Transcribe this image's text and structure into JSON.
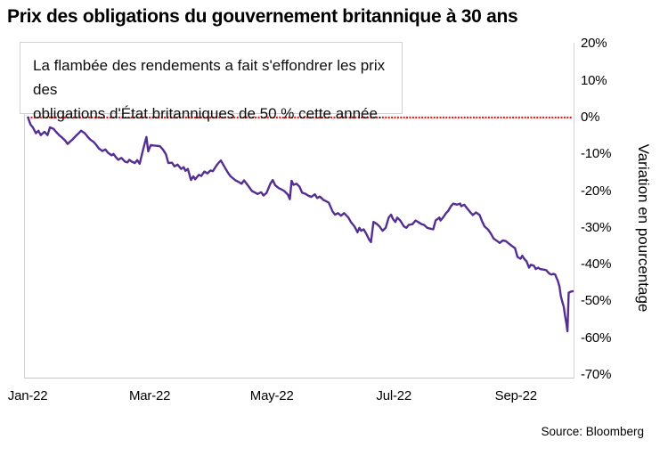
{
  "title": "Prix des obligations du gouvernement britannique à 30 ans",
  "annotation": {
    "line1": "La flambée des rendements a fait s'effondrer les prix des",
    "line2": "obligations d'État britanniques de 50 % cette année."
  },
  "y_axis_label": "Variation en pourcentage",
  "source": "Source: Bloomberg",
  "colors": {
    "line": "#542e91",
    "zero_line": "#ff0000",
    "border": "#d4d4d4",
    "text": "#000000"
  },
  "chart_data": {
    "type": "line",
    "title": "Prix des obligations du gouvernement britannique à 30 ans",
    "xlabel": "",
    "ylabel": "Variation en pourcentage",
    "grid": false,
    "legend": "none",
    "x_tick_labels": [
      "Jan-22",
      "Mar-22",
      "May-22",
      "Jul-22",
      "Sep-22"
    ],
    "x_tick_months": [
      0,
      2,
      4,
      6,
      8
    ],
    "y_ticks_pct": [
      20,
      10,
      0,
      -10,
      -20,
      -30,
      -40,
      -50,
      -60,
      -70
    ],
    "xlim_months": [
      -0.06,
      8.93
    ],
    "ylim_pct": [
      -70.7,
      20.3
    ],
    "zero_reference_line_pct": 0,
    "series": [
      {
        "name": "Variation en pourcentage",
        "x_months": [
          -0.01,
          0.03,
          0.07,
          0.12,
          0.16,
          0.2,
          0.26,
          0.31,
          0.35,
          0.41,
          0.45,
          0.5,
          0.55,
          0.6,
          0.64,
          0.67,
          0.72,
          0.77,
          0.82,
          0.86,
          0.92,
          0.96,
          1.01,
          1.07,
          1.11,
          1.15,
          1.21,
          1.26,
          1.3,
          1.36,
          1.39,
          1.43,
          1.47,
          1.52,
          1.58,
          1.62,
          1.65,
          1.69,
          1.74,
          1.78,
          1.82,
          1.88,
          1.93,
          1.96,
          2.0,
          2.04,
          2.1,
          2.15,
          2.2,
          2.25,
          2.29,
          2.35,
          2.39,
          2.44,
          2.5,
          2.54,
          2.57,
          2.61,
          2.66,
          2.7,
          2.73,
          2.79,
          2.83,
          2.88,
          2.93,
          2.98,
          3.02,
          3.08,
          3.12,
          3.15,
          3.23,
          3.27,
          3.31,
          3.39,
          3.45,
          3.49,
          3.53,
          3.59,
          3.66,
          3.71,
          3.75,
          3.81,
          3.85,
          3.9,
          3.96,
          4.0,
          4.04,
          4.1,
          4.15,
          4.19,
          4.25,
          4.28,
          4.31,
          4.34,
          4.39,
          4.44,
          4.48,
          4.54,
          4.58,
          4.63,
          4.69,
          4.73,
          4.77,
          4.83,
          4.88,
          4.92,
          4.98,
          5.02,
          5.07,
          5.12,
          5.17,
          5.24,
          5.28,
          5.34,
          5.39,
          5.42,
          5.45,
          5.49,
          5.53,
          5.58,
          5.61,
          5.65,
          5.71,
          5.75,
          5.8,
          5.85,
          5.9,
          5.94,
          5.97,
          6.01,
          6.04,
          6.09,
          6.15,
          6.19,
          6.23,
          6.29,
          6.34,
          6.38,
          6.44,
          6.48,
          6.53,
          6.58,
          6.63,
          6.67,
          6.73,
          6.75,
          6.8,
          6.84,
          6.88,
          6.92,
          6.96,
          7.02,
          7.07,
          7.09,
          7.14,
          7.18,
          7.24,
          7.28,
          7.33,
          7.39,
          7.43,
          7.47,
          7.53,
          7.58,
          7.62,
          7.68,
          7.72,
          7.77,
          7.82,
          7.87,
          7.91,
          7.97,
          8.01,
          8.06,
          8.09,
          8.12,
          8.16,
          8.2,
          8.23,
          8.28,
          8.31,
          8.35,
          8.38,
          8.42,
          8.48,
          8.53,
          8.57,
          8.6,
          8.63,
          8.65,
          8.67,
          8.7,
          8.72,
          8.74,
          8.77,
          8.79,
          8.81,
          8.83,
          8.85,
          8.89,
          8.93
        ],
        "pct": [
          0.0,
          -1.9,
          -2.7,
          -4.3,
          -3.6,
          -4.8,
          -3.9,
          -4.8,
          -2.7,
          -3.1,
          -3.9,
          -4.8,
          -5.5,
          -6.3,
          -7.2,
          -6.7,
          -6.0,
          -5.1,
          -4.3,
          -3.6,
          -4.3,
          -5.1,
          -6.0,
          -6.7,
          -7.5,
          -8.4,
          -9.1,
          -8.7,
          -9.6,
          -10.3,
          -9.9,
          -10.8,
          -11.5,
          -11.0,
          -12.0,
          -12.2,
          -11.5,
          -12.0,
          -12.4,
          -11.6,
          -12.6,
          -8.5,
          -5.3,
          -9.2,
          -7.5,
          -7.6,
          -7.7,
          -7.8,
          -8.7,
          -10.0,
          -12.4,
          -12.3,
          -13.3,
          -12.8,
          -14.0,
          -13.5,
          -14.5,
          -14.0,
          -17.0,
          -16.0,
          -16.8,
          -15.6,
          -15.9,
          -14.7,
          -15.2,
          -14.4,
          -14.6,
          -13.0,
          -12.2,
          -11.7,
          -14.0,
          -15.1,
          -16.0,
          -17.1,
          -17.6,
          -18.0,
          -17.1,
          -18.4,
          -20.0,
          -20.4,
          -20.8,
          -20.3,
          -21.2,
          -20.5,
          -18.0,
          -17.0,
          -18.4,
          -19.2,
          -19.6,
          -20.0,
          -21.0,
          -22.2,
          -17.2,
          -18.3,
          -18.0,
          -18.8,
          -20.4,
          -20.8,
          -21.2,
          -21.6,
          -20.9,
          -21.9,
          -21.5,
          -22.4,
          -22.8,
          -23.2,
          -25.5,
          -26.4,
          -26.0,
          -26.7,
          -26.0,
          -27.2,
          -28.4,
          -29.6,
          -31.2,
          -30.0,
          -30.8,
          -30.4,
          -31.5,
          -33.2,
          -33.9,
          -28.4,
          -29.0,
          -29.6,
          -30.8,
          -30.0,
          -27.2,
          -26.4,
          -27.6,
          -28.4,
          -27.2,
          -28.0,
          -29.6,
          -30.0,
          -29.2,
          -29.0,
          -28.0,
          -28.4,
          -29.0,
          -29.2,
          -30.0,
          -30.2,
          -30.4,
          -28.0,
          -27.2,
          -28.0,
          -27.0,
          -26.0,
          -25.3,
          -24.1,
          -23.4,
          -23.7,
          -23.4,
          -24.1,
          -23.7,
          -24.6,
          -25.8,
          -26.5,
          -25.8,
          -26.5,
          -28.2,
          -29.6,
          -30.5,
          -31.7,
          -32.9,
          -33.6,
          -34.1,
          -33.4,
          -33.6,
          -34.3,
          -34.8,
          -35.5,
          -37.9,
          -38.4,
          -37.6,
          -38.4,
          -39.1,
          -40.8,
          -40.0,
          -40.3,
          -41.2,
          -40.8,
          -41.2,
          -41.3,
          -41.5,
          -42.4,
          -42.7,
          -42.5,
          -42.7,
          -43.6,
          -44.3,
          -46.0,
          -48.4,
          -49.8,
          -51.5,
          -53.9,
          -55.8,
          -58.1,
          -47.6,
          -47.3,
          -47.2
        ]
      }
    ]
  }
}
